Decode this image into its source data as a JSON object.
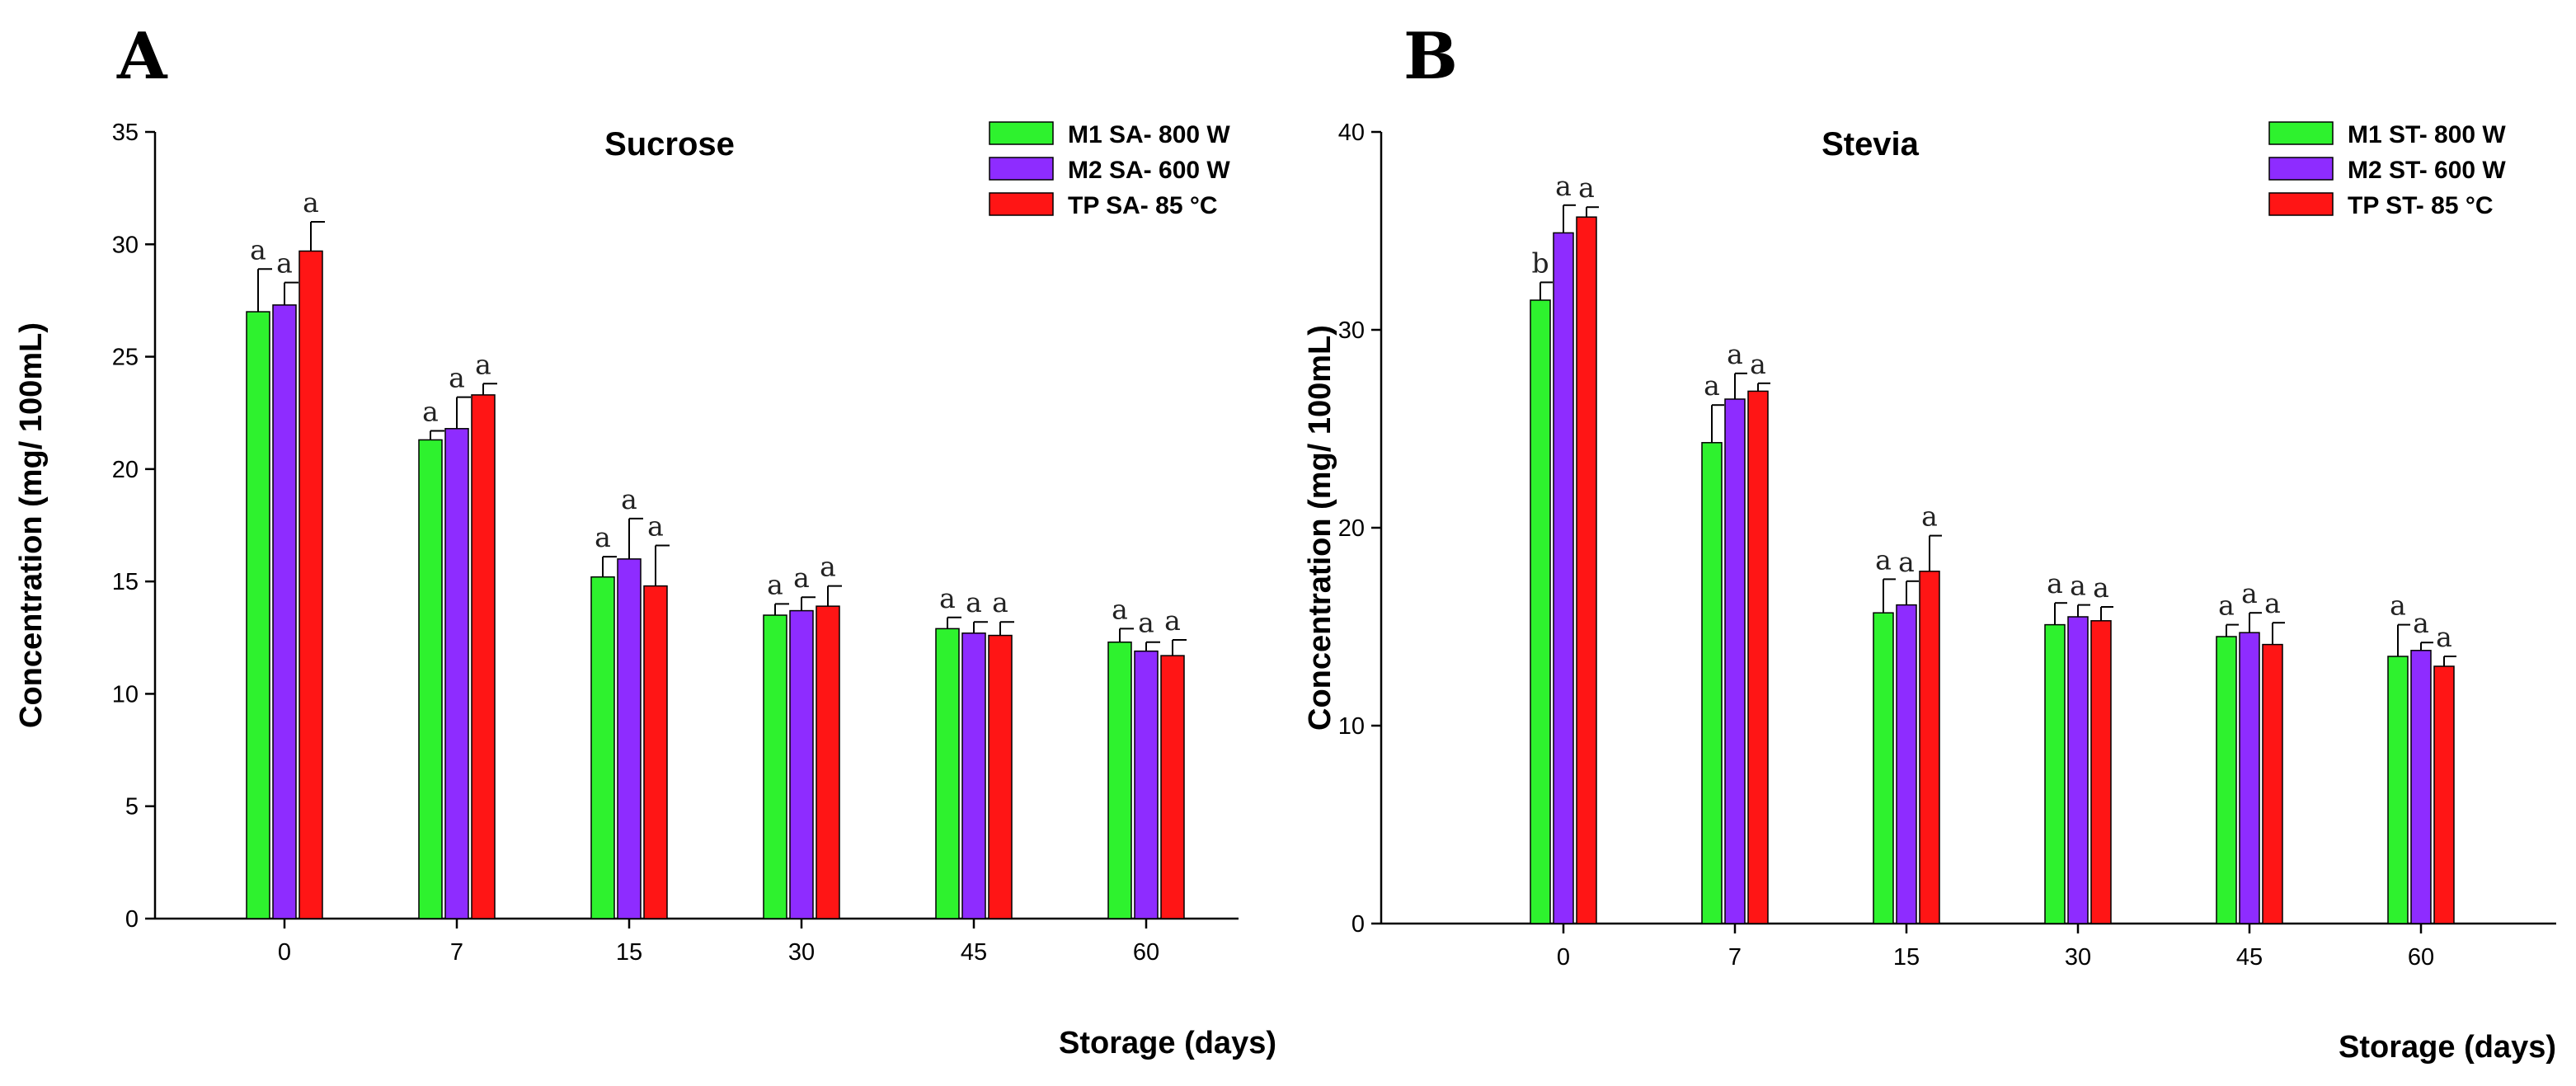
{
  "colors": {
    "m1": "#2ef22e",
    "m2": "#8e2cff",
    "tp": "#ff1515"
  },
  "chart_data": [
    {
      "type": "bar",
      "panel": "A",
      "title": "Sucrose",
      "xlabel": "Storage (days)",
      "ylabel": "Concentration (mg/ 100mL)",
      "ylim": [
        0,
        35
      ],
      "yticks": [
        0,
        5,
        10,
        15,
        20,
        25,
        30,
        35
      ],
      "categories": [
        "0",
        "7",
        "15",
        "30",
        "45",
        "60"
      ],
      "grid": false,
      "legend_position": "top-right",
      "series": [
        {
          "name": "M1 SA- 800 W",
          "color": "#2ef22e",
          "values": [
            27.0,
            21.3,
            15.2,
            13.5,
            12.9,
            12.3
          ],
          "errors": [
            1.9,
            0.4,
            0.9,
            0.5,
            0.5,
            0.6
          ],
          "labels": [
            "a",
            "a",
            "a",
            "a",
            "a",
            "a"
          ]
        },
        {
          "name": "M2 SA- 600 W",
          "color": "#8e2cff",
          "values": [
            27.3,
            21.8,
            16.0,
            13.7,
            12.7,
            11.9
          ],
          "errors": [
            1.0,
            1.4,
            1.8,
            0.6,
            0.5,
            0.4
          ],
          "labels": [
            "a",
            "a",
            "a",
            "a",
            "a",
            "a"
          ]
        },
        {
          "name": "TP SA- 85 °C",
          "color": "#ff1515",
          "values": [
            29.7,
            23.3,
            14.8,
            13.9,
            12.6,
            11.7
          ],
          "errors": [
            1.3,
            0.5,
            1.8,
            0.9,
            0.6,
            0.7
          ],
          "labels": [
            "a",
            "a",
            "a",
            "a",
            "a",
            "a"
          ]
        }
      ]
    },
    {
      "type": "bar",
      "panel": "B",
      "title": "Stevia",
      "xlabel": "Storage (days)",
      "ylabel": "Concentration (mg/ 100mL)",
      "ylim": [
        0,
        40
      ],
      "yticks": [
        0,
        10,
        20,
        30,
        40
      ],
      "categories": [
        "0",
        "7",
        "15",
        "30",
        "45",
        "60"
      ],
      "grid": false,
      "legend_position": "top-right",
      "series": [
        {
          "name": "M1 ST- 800 W",
          "color": "#2ef22e",
          "values": [
            31.5,
            24.3,
            15.7,
            15.1,
            14.5,
            13.5
          ],
          "errors": [
            0.9,
            1.9,
            1.7,
            1.1,
            0.6,
            1.6
          ],
          "labels": [
            "b",
            "a",
            "a",
            "a",
            "a",
            "a"
          ]
        },
        {
          "name": "M2 ST- 600 W",
          "color": "#8e2cff",
          "values": [
            34.9,
            26.5,
            16.1,
            15.5,
            14.7,
            13.8
          ],
          "errors": [
            1.4,
            1.3,
            1.2,
            0.6,
            1.0,
            0.4
          ],
          "labels": [
            "a",
            "a",
            "a",
            "a",
            "a",
            "a"
          ]
        },
        {
          "name": "TP ST- 85 °C",
          "color": "#ff1515",
          "values": [
            35.7,
            26.9,
            17.8,
            15.3,
            14.1,
            13.0
          ],
          "errors": [
            0.5,
            0.4,
            1.8,
            0.7,
            1.1,
            0.5
          ],
          "labels": [
            "a",
            "a",
            "a",
            "a",
            "a",
            "a"
          ]
        }
      ]
    }
  ]
}
